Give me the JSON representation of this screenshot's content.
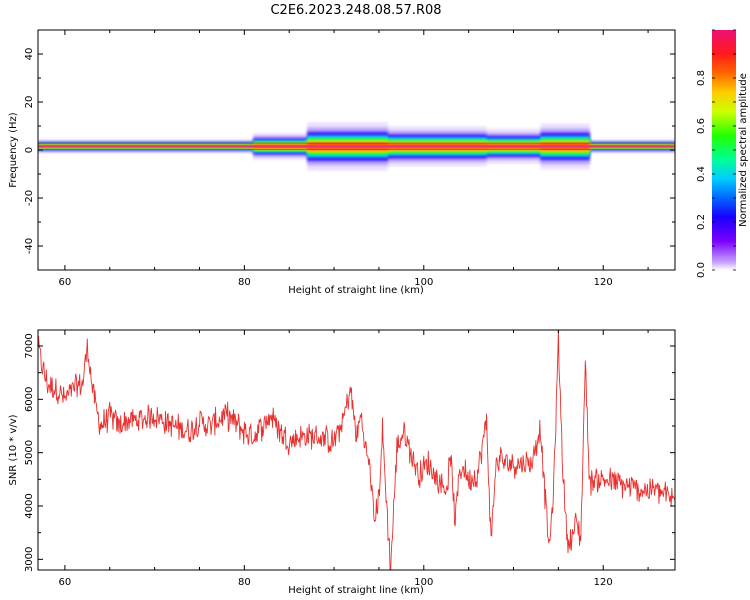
{
  "title": "C2E6.2023.248.08.57.R08",
  "chart_data": [
    {
      "type": "heatmap",
      "xlabel": "Height of straight line (km)",
      "ylabel": "Frequency (Hz)",
      "xlim": [
        57,
        128
      ],
      "ylim": [
        -50,
        50
      ],
      "xticks": [
        60,
        80,
        100,
        120
      ],
      "yticks": [
        -40,
        -20,
        0,
        20,
        40
      ],
      "colorbar": {
        "label": "Normalized spectral amplitude",
        "range": [
          0,
          1
        ],
        "ticks": [
          "0.0",
          "0.2",
          "0.4",
          "0.6",
          "0.8"
        ]
      },
      "band": {
        "center_freq": 1.5,
        "core_color": "#e53a6e",
        "spread_segments": [
          {
            "x0": 57,
            "x1": 81,
            "width": 1.0
          },
          {
            "x0": 81,
            "x1": 87,
            "width": 2.0
          },
          {
            "x0": 87,
            "x1": 96,
            "width": 3.6
          },
          {
            "x0": 96,
            "x1": 107,
            "width": 3.0
          },
          {
            "x0": 107,
            "x1": 113,
            "width": 2.6
          },
          {
            "x0": 113,
            "x1": 118.5,
            "width": 3.4
          },
          {
            "x0": 118.5,
            "x1": 128,
            "width": 1.0
          }
        ]
      }
    },
    {
      "type": "line",
      "xlabel": "Height of straight line (km)",
      "ylabel": "SNR (10 * v/v)",
      "xlim": [
        57,
        128
      ],
      "ylim": [
        2800,
        7300
      ],
      "xticks": [
        60,
        80,
        100,
        120
      ],
      "yticks": [
        3000,
        4000,
        5000,
        6000,
        7000
      ],
      "color": "#e8312f",
      "x": [
        57,
        57.5,
        58,
        59,
        60,
        61,
        62,
        62.5,
        63,
        63.5,
        64,
        65,
        66,
        67,
        68,
        70,
        72,
        74,
        75,
        76,
        78,
        80,
        81,
        82,
        83,
        84,
        85,
        86,
        88,
        90,
        91,
        91.8,
        92.5,
        93,
        93.5,
        94,
        94.5,
        95,
        95.4,
        95.8,
        96.3,
        97,
        97.8,
        98.5,
        99.5,
        100.5,
        101.5,
        102.5,
        103,
        103.5,
        104,
        104.5,
        105,
        106,
        107,
        107.5,
        108,
        108.5,
        109,
        110,
        111,
        112,
        113,
        113.5,
        114,
        114.5,
        115,
        115.5,
        116,
        116.5,
        117,
        117.5,
        118,
        118.5,
        119,
        120,
        122,
        124,
        126,
        127,
        128
      ],
      "y": [
        7000,
        6600,
        6300,
        6200,
        6000,
        6200,
        6300,
        7000,
        6300,
        5800,
        5500,
        5700,
        5500,
        5600,
        5600,
        5700,
        5500,
        5400,
        5600,
        5500,
        5700,
        5400,
        5300,
        5500,
        5700,
        5400,
        5200,
        5300,
        5300,
        5200,
        5600,
        6200,
        5300,
        5700,
        5100,
        4700,
        3700,
        4200,
        5400,
        4200,
        2800,
        5100,
        5400,
        5000,
        4600,
        4800,
        4500,
        4300,
        4900,
        3700,
        4700,
        4700,
        4500,
        4600,
        5600,
        3300,
        4700,
        4900,
        4800,
        4800,
        4800,
        4800,
        5500,
        4200,
        3200,
        4400,
        7100,
        4700,
        3300,
        3400,
        3700,
        3400,
        6700,
        4400,
        4500,
        4500,
        4400,
        4300,
        4300,
        4200,
        4100
      ]
    }
  ]
}
